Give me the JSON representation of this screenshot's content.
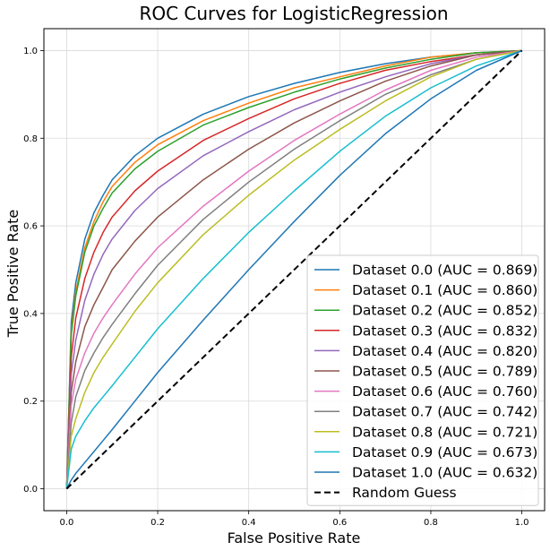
{
  "chart_data": {
    "type": "line",
    "title": "ROC Curves for LogisticRegression",
    "xlabel": "False Positive Rate",
    "ylabel": "True Positive Rate",
    "xlim": [
      -0.05,
      1.05
    ],
    "ylim": [
      -0.05,
      1.05
    ],
    "xticks": [
      "0.0",
      "0.2",
      "0.4",
      "0.6",
      "0.8",
      "1.0"
    ],
    "yticks": [
      "0.0",
      "0.2",
      "0.4",
      "0.6",
      "0.8",
      "1.0"
    ],
    "grid": true,
    "legend_position": "bottom-right",
    "series": [
      {
        "name": "Dataset 0.0 (AUC = 0.869)",
        "auc": 0.869,
        "color": "#1f77b4",
        "x": [
          0,
          0.01,
          0.02,
          0.04,
          0.06,
          0.08,
          0.1,
          0.15,
          0.2,
          0.3,
          0.4,
          0.5,
          0.6,
          0.7,
          0.8,
          0.9,
          1.0
        ],
        "y": [
          0,
          0.38,
          0.47,
          0.57,
          0.63,
          0.67,
          0.705,
          0.76,
          0.8,
          0.855,
          0.895,
          0.925,
          0.95,
          0.97,
          0.985,
          0.995,
          1.0
        ]
      },
      {
        "name": "Dataset 0.1 (AUC = 0.860)",
        "auc": 0.86,
        "color": "#ff7f0e",
        "x": [
          0,
          0.01,
          0.02,
          0.04,
          0.06,
          0.08,
          0.1,
          0.15,
          0.2,
          0.3,
          0.4,
          0.5,
          0.6,
          0.7,
          0.8,
          0.9,
          1.0
        ],
        "y": [
          0,
          0.36,
          0.45,
          0.55,
          0.61,
          0.655,
          0.69,
          0.745,
          0.785,
          0.84,
          0.88,
          0.915,
          0.94,
          0.965,
          0.985,
          0.995,
          1.0
        ]
      },
      {
        "name": "Dataset 0.2 (AUC = 0.852)",
        "auc": 0.852,
        "color": "#2ca02c",
        "x": [
          0,
          0.01,
          0.02,
          0.04,
          0.06,
          0.08,
          0.1,
          0.15,
          0.2,
          0.3,
          0.4,
          0.5,
          0.6,
          0.7,
          0.8,
          0.9,
          1.0
        ],
        "y": [
          0,
          0.35,
          0.44,
          0.54,
          0.6,
          0.64,
          0.675,
          0.73,
          0.77,
          0.83,
          0.87,
          0.905,
          0.935,
          0.96,
          0.98,
          0.995,
          1.0
        ]
      },
      {
        "name": "Dataset 0.3 (AUC = 0.832)",
        "auc": 0.832,
        "color": "#d62728",
        "x": [
          0,
          0.01,
          0.02,
          0.04,
          0.06,
          0.08,
          0.1,
          0.15,
          0.2,
          0.3,
          0.4,
          0.5,
          0.6,
          0.7,
          0.8,
          0.9,
          1.0
        ],
        "y": [
          0,
          0.3,
          0.39,
          0.48,
          0.54,
          0.585,
          0.62,
          0.68,
          0.725,
          0.795,
          0.845,
          0.89,
          0.925,
          0.955,
          0.975,
          0.99,
          1.0
        ]
      },
      {
        "name": "Dataset 0.4 (AUC = 0.820)",
        "auc": 0.82,
        "color": "#9467bd",
        "x": [
          0,
          0.01,
          0.02,
          0.04,
          0.06,
          0.08,
          0.1,
          0.15,
          0.2,
          0.3,
          0.4,
          0.5,
          0.6,
          0.7,
          0.8,
          0.9,
          1.0
        ],
        "y": [
          0,
          0.26,
          0.34,
          0.43,
          0.49,
          0.535,
          0.57,
          0.635,
          0.685,
          0.76,
          0.815,
          0.865,
          0.905,
          0.94,
          0.97,
          0.99,
          1.0
        ]
      },
      {
        "name": "Dataset 0.5 (AUC = 0.789)",
        "auc": 0.789,
        "color": "#8c564b",
        "x": [
          0,
          0.01,
          0.02,
          0.04,
          0.06,
          0.08,
          0.1,
          0.15,
          0.2,
          0.3,
          0.4,
          0.5,
          0.6,
          0.7,
          0.8,
          0.9,
          1.0
        ],
        "y": [
          0,
          0.22,
          0.29,
          0.37,
          0.42,
          0.46,
          0.5,
          0.565,
          0.62,
          0.705,
          0.775,
          0.835,
          0.885,
          0.93,
          0.965,
          0.99,
          1.0
        ]
      },
      {
        "name": "Dataset 0.6 (AUC = 0.760)",
        "auc": 0.76,
        "color": "#e377c2",
        "x": [
          0,
          0.01,
          0.02,
          0.04,
          0.06,
          0.08,
          0.1,
          0.15,
          0.2,
          0.3,
          0.4,
          0.5,
          0.6,
          0.7,
          0.8,
          0.9,
          1.0
        ],
        "y": [
          0,
          0.19,
          0.25,
          0.31,
          0.355,
          0.39,
          0.42,
          0.49,
          0.55,
          0.645,
          0.725,
          0.795,
          0.855,
          0.91,
          0.955,
          0.985,
          1.0
        ]
      },
      {
        "name": "Dataset 0.7 (AUC = 0.742)",
        "auc": 0.742,
        "color": "#7f7f7f",
        "x": [
          0,
          0.01,
          0.02,
          0.04,
          0.06,
          0.08,
          0.1,
          0.15,
          0.2,
          0.3,
          0.4,
          0.5,
          0.6,
          0.7,
          0.8,
          0.9,
          1.0
        ],
        "y": [
          0,
          0.15,
          0.21,
          0.27,
          0.31,
          0.345,
          0.375,
          0.445,
          0.51,
          0.615,
          0.7,
          0.775,
          0.84,
          0.9,
          0.945,
          0.98,
          1.0
        ]
      },
      {
        "name": "Dataset 0.8 (AUC = 0.721)",
        "auc": 0.721,
        "color": "#bcbd22",
        "x": [
          0,
          0.01,
          0.02,
          0.04,
          0.06,
          0.08,
          0.1,
          0.15,
          0.2,
          0.3,
          0.4,
          0.5,
          0.6,
          0.7,
          0.8,
          0.9,
          1.0
        ],
        "y": [
          0,
          0.12,
          0.16,
          0.22,
          0.265,
          0.3,
          0.33,
          0.405,
          0.47,
          0.58,
          0.67,
          0.75,
          0.82,
          0.885,
          0.94,
          0.98,
          1.0
        ]
      },
      {
        "name": "Dataset 0.9 (AUC = 0.673)",
        "auc": 0.673,
        "color": "#17becf",
        "x": [
          0,
          0.01,
          0.02,
          0.04,
          0.06,
          0.08,
          0.1,
          0.15,
          0.2,
          0.3,
          0.4,
          0.5,
          0.6,
          0.7,
          0.8,
          0.9,
          1.0
        ],
        "y": [
          0,
          0.09,
          0.12,
          0.155,
          0.185,
          0.21,
          0.235,
          0.3,
          0.365,
          0.48,
          0.585,
          0.68,
          0.77,
          0.85,
          0.915,
          0.965,
          1.0
        ]
      },
      {
        "name": "Dataset 1.0 (AUC = 0.632)",
        "auc": 0.632,
        "color": "#1f77b4",
        "x": [
          0,
          0.01,
          0.02,
          0.04,
          0.06,
          0.08,
          0.1,
          0.15,
          0.2,
          0.3,
          0.4,
          0.5,
          0.6,
          0.7,
          0.8,
          0.9,
          1.0
        ],
        "y": [
          0,
          0.02,
          0.035,
          0.06,
          0.085,
          0.11,
          0.135,
          0.2,
          0.265,
          0.385,
          0.5,
          0.61,
          0.715,
          0.81,
          0.89,
          0.955,
          1.0
        ]
      },
      {
        "name": "Random Guess",
        "color": "#000000",
        "dashed": true,
        "x": [
          0,
          1
        ],
        "y": [
          0,
          1
        ]
      }
    ]
  }
}
